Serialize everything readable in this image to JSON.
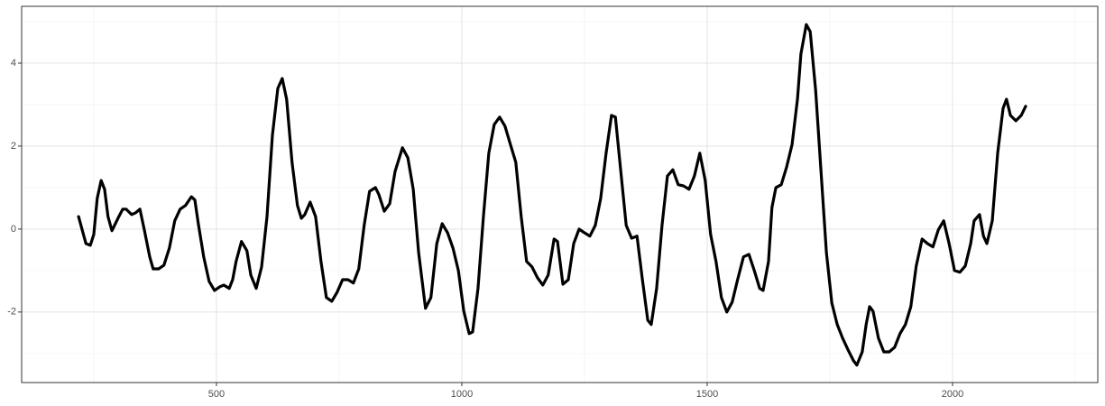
{
  "chart_data": {
    "type": "line",
    "color": "#000000",
    "grid": true,
    "xlim": [
      103,
      2296
    ],
    "ylim": [
      -3.7,
      5.37
    ],
    "xticks": [
      500,
      1000,
      1500,
      2000
    ],
    "yticks": [
      -2,
      0,
      2,
      4
    ],
    "x_minor_grid": [
      250,
      750,
      1250,
      1750,
      2250
    ],
    "y_minor_grid": [
      -3,
      -1,
      1,
      3,
      5
    ],
    "x": [
      219,
      234,
      243,
      250,
      257,
      265,
      272,
      279,
      287,
      294,
      301,
      309,
      316,
      327,
      335,
      344,
      353,
      364,
      371,
      382,
      393,
      404,
      415,
      426,
      437,
      449,
      456,
      463,
      474,
      485,
      496,
      507,
      515,
      526,
      533,
      540,
      551,
      562,
      570,
      581,
      592,
      603,
      614,
      625,
      634,
      643,
      654,
      665,
      673,
      680,
      691,
      702,
      713,
      724,
      735,
      746,
      757,
      768,
      779,
      790,
      801,
      812,
      824,
      831,
      842,
      853,
      864,
      879,
      890,
      901,
      912,
      926,
      937,
      949,
      960,
      971,
      982,
      993,
      1004,
      1015,
      1022,
      1033,
      1044,
      1055,
      1066,
      1077,
      1088,
      1099,
      1110,
      1121,
      1132,
      1143,
      1154,
      1165,
      1176,
      1188,
      1195,
      1206,
      1217,
      1228,
      1239,
      1250,
      1261,
      1272,
      1283,
      1294,
      1305,
      1313,
      1324,
      1335,
      1346,
      1357,
      1368,
      1379,
      1386,
      1397,
      1408,
      1419,
      1430,
      1441,
      1452,
      1463,
      1474,
      1485,
      1496,
      1507,
      1518,
      1529,
      1540,
      1551,
      1562,
      1574,
      1585,
      1596,
      1607,
      1614,
      1625,
      1632,
      1640,
      1651,
      1662,
      1673,
      1684,
      1691,
      1702,
      1710,
      1721,
      1732,
      1743,
      1754,
      1765,
      1776,
      1787,
      1798,
      1805,
      1816,
      1824,
      1831,
      1838,
      1849,
      1860,
      1871,
      1882,
      1893,
      1904,
      1915,
      1926,
      1938,
      1949,
      1960,
      1971,
      1982,
      1993,
      2004,
      2015,
      2026,
      2037,
      2044,
      2055,
      2063,
      2070,
      2081,
      2092,
      2103,
      2110,
      2118,
      2129,
      2140,
      2149
    ],
    "values": [
      0.3,
      -0.35,
      -0.39,
      -0.13,
      0.74,
      1.17,
      0.96,
      0.3,
      -0.04,
      0.13,
      0.3,
      0.48,
      0.48,
      0.35,
      0.39,
      0.48,
      -0.02,
      -0.67,
      -0.96,
      -0.96,
      -0.87,
      -0.46,
      0.2,
      0.48,
      0.57,
      0.78,
      0.7,
      0.13,
      -0.67,
      -1.26,
      -1.48,
      -1.39,
      -1.35,
      -1.43,
      -1.22,
      -0.78,
      -0.3,
      -0.52,
      -1.11,
      -1.43,
      -0.91,
      0.3,
      2.26,
      3.39,
      3.63,
      3.13,
      1.61,
      0.57,
      0.26,
      0.35,
      0.65,
      0.3,
      -0.78,
      -1.65,
      -1.74,
      -1.52,
      -1.22,
      -1.22,
      -1.3,
      -0.96,
      0.09,
      0.91,
      1.0,
      0.83,
      0.43,
      0.61,
      1.39,
      1.96,
      1.72,
      0.96,
      -0.57,
      -1.91,
      -1.65,
      -0.35,
      0.13,
      -0.09,
      -0.46,
      -1.0,
      -1.98,
      -2.52,
      -2.48,
      -1.43,
      0.3,
      1.83,
      2.52,
      2.7,
      2.48,
      2.04,
      1.61,
      0.3,
      -0.78,
      -0.91,
      -1.17,
      -1.35,
      -1.11,
      -0.24,
      -0.3,
      -1.33,
      -1.22,
      -0.35,
      0.0,
      -0.09,
      -0.17,
      0.09,
      0.74,
      1.83,
      2.74,
      2.7,
      1.39,
      0.09,
      -0.22,
      -0.17,
      -1.22,
      -2.2,
      -2.3,
      -1.43,
      0.09,
      1.28,
      1.43,
      1.07,
      1.04,
      0.96,
      1.28,
      1.83,
      1.17,
      -0.13,
      -0.78,
      -1.65,
      -2.0,
      -1.76,
      -1.22,
      -0.67,
      -0.61,
      -1.0,
      -1.43,
      -1.48,
      -0.78,
      0.52,
      1.0,
      1.07,
      1.5,
      2.04,
      3.13,
      4.22,
      4.93,
      4.76,
      3.35,
      1.39,
      -0.57,
      -1.78,
      -2.3,
      -2.63,
      -2.91,
      -3.17,
      -3.28,
      -2.96,
      -2.3,
      -1.87,
      -1.98,
      -2.63,
      -2.96,
      -2.96,
      -2.85,
      -2.52,
      -2.3,
      -1.87,
      -0.89,
      -0.24,
      -0.35,
      -0.43,
      -0.02,
      0.2,
      -0.35,
      -1.0,
      -1.04,
      -0.89,
      -0.35,
      0.2,
      0.35,
      -0.17,
      -0.35,
      0.2,
      1.83,
      2.91,
      3.13,
      2.74,
      2.61,
      2.74,
      2.96
    ]
  }
}
